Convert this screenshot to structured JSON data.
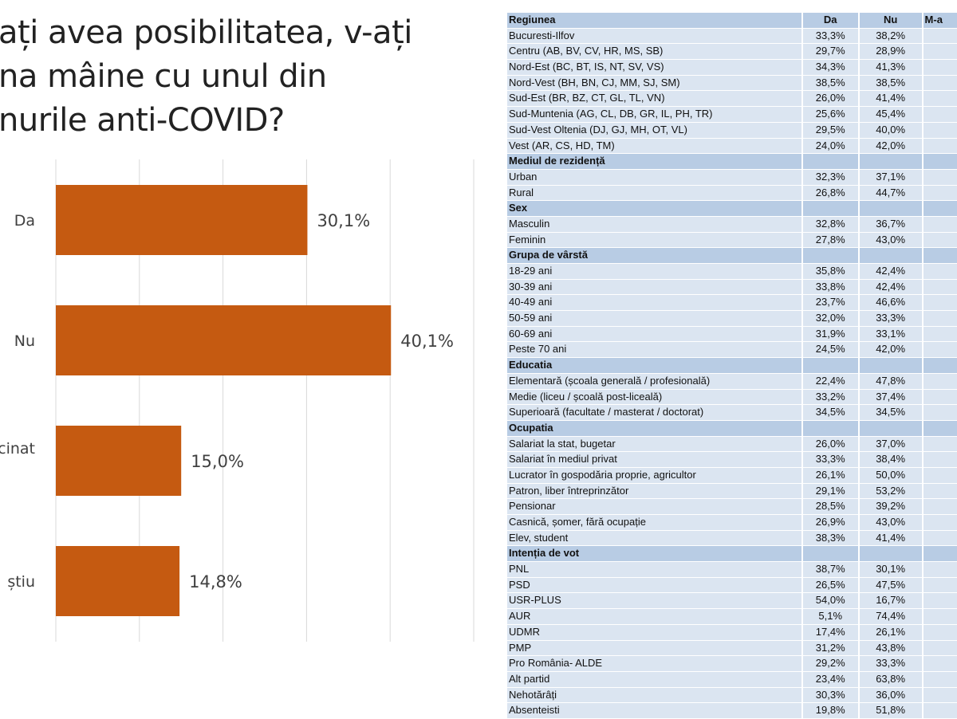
{
  "title_lines": [
    "ați avea posibilitatea, v-ați",
    "na mâine cu unul din",
    "nurile anti-COVID?"
  ],
  "chart_data": {
    "type": "bar",
    "orientation": "horizontal",
    "categories": [
      "Da",
      "Nu",
      "cinat",
      "știu"
    ],
    "values": [
      30.1,
      40.1,
      15.0,
      14.8
    ],
    "value_labels": [
      "30,1%",
      "40,1%",
      "15,0%",
      "14,8%"
    ],
    "xlim": [
      0,
      50
    ],
    "grid": true,
    "bar_color": "#c55a11"
  },
  "table": {
    "headers": [
      "Regiunea",
      "Da",
      "Nu",
      "M-a"
    ],
    "rows": [
      {
        "label": "Bucuresti-Ilfov",
        "da": "33,3%",
        "nu": "38,2%"
      },
      {
        "label": "Centru (AB, BV, CV, HR, MS, SB)",
        "da": "29,7%",
        "nu": "28,9%"
      },
      {
        "label": "Nord-Est (BC, BT, IS, NT, SV, VS)",
        "da": "34,3%",
        "nu": "41,3%"
      },
      {
        "label": "Nord-Vest (BH, BN, CJ, MM, SJ, SM)",
        "da": "38,5%",
        "nu": "38,5%"
      },
      {
        "label": "Sud-Est (BR, BZ, CT, GL, TL, VN)",
        "da": "26,0%",
        "nu": "41,4%"
      },
      {
        "label": "Sud-Muntenia (AG, CL, DB, GR, IL, PH, TR)",
        "da": "25,6%",
        "nu": "45,4%"
      },
      {
        "label": "Sud-Vest Oltenia (DJ, GJ, MH, OT, VL)",
        "da": "29,5%",
        "nu": "40,0%"
      },
      {
        "label": "Vest (AR, CS, HD, TM)",
        "da": "24,0%",
        "nu": "42,0%"
      },
      {
        "label": "Mediul de rezidență",
        "section": true
      },
      {
        "label": "Urban",
        "da": "32,3%",
        "nu": "37,1%"
      },
      {
        "label": "Rural",
        "da": "26,8%",
        "nu": "44,7%"
      },
      {
        "label": "Sex",
        "section": true
      },
      {
        "label": "Masculin",
        "da": "32,8%",
        "nu": "36,7%"
      },
      {
        "label": "Feminin",
        "da": "27,8%",
        "nu": "43,0%"
      },
      {
        "label": "Grupa de vârstă",
        "section": true
      },
      {
        "label": "18-29 ani",
        "da": "35,8%",
        "nu": "42,4%"
      },
      {
        "label": "30-39 ani",
        "da": "33,8%",
        "nu": "42,4%"
      },
      {
        "label": "40-49 ani",
        "da": "23,7%",
        "nu": "46,6%"
      },
      {
        "label": "50-59 ani",
        "da": "32,0%",
        "nu": "33,3%"
      },
      {
        "label": "60-69 ani",
        "da": "31,9%",
        "nu": "33,1%"
      },
      {
        "label": "Peste 70 ani",
        "da": "24,5%",
        "nu": "42,0%"
      },
      {
        "label": "Educatia",
        "section": true
      },
      {
        "label": "Elementară (școala generală / profesională)",
        "da": "22,4%",
        "nu": "47,8%"
      },
      {
        "label": "Medie (liceu / școală post-liceală)",
        "da": "33,2%",
        "nu": "37,4%"
      },
      {
        "label": "Superioară (facultate / masterat / doctorat)",
        "da": "34,5%",
        "nu": "34,5%"
      },
      {
        "label": "Ocupatia",
        "section": true
      },
      {
        "label": "Salariat la stat, bugetar",
        "da": "26,0%",
        "nu": "37,0%"
      },
      {
        "label": "Salariat în mediul privat",
        "da": "33,3%",
        "nu": "38,4%"
      },
      {
        "label": "Lucrator în gospodăria proprie, agricultor",
        "da": "26,1%",
        "nu": "50,0%"
      },
      {
        "label": "Patron, liber întreprinzător",
        "da": "29,1%",
        "nu": "53,2%"
      },
      {
        "label": "Pensionar",
        "da": "28,5%",
        "nu": "39,2%"
      },
      {
        "label": "Casnică, șomer, fără ocupație",
        "da": "26,9%",
        "nu": "43,0%"
      },
      {
        "label": "Elev, student",
        "da": "38,3%",
        "nu": "41,4%"
      },
      {
        "label": "Intenția de vot",
        "section": true
      },
      {
        "label": "PNL",
        "da": "38,7%",
        "nu": "30,1%"
      },
      {
        "label": "PSD",
        "da": "26,5%",
        "nu": "47,5%"
      },
      {
        "label": "USR-PLUS",
        "da": "54,0%",
        "nu": "16,7%"
      },
      {
        "label": "AUR",
        "da": "5,1%",
        "nu": "74,4%"
      },
      {
        "label": "UDMR",
        "da": "17,4%",
        "nu": "26,1%"
      },
      {
        "label": "PMP",
        "da": "31,2%",
        "nu": "43,8%"
      },
      {
        "label": "Pro România- ALDE",
        "da": "29,2%",
        "nu": "33,3%"
      },
      {
        "label": "Alt partid",
        "da": "23,4%",
        "nu": "63,8%"
      },
      {
        "label": "Nehotărâți",
        "da": "30,3%",
        "nu": "36,0%"
      },
      {
        "label": "Absenteisti",
        "da": "19,8%",
        "nu": "51,8%"
      }
    ]
  }
}
